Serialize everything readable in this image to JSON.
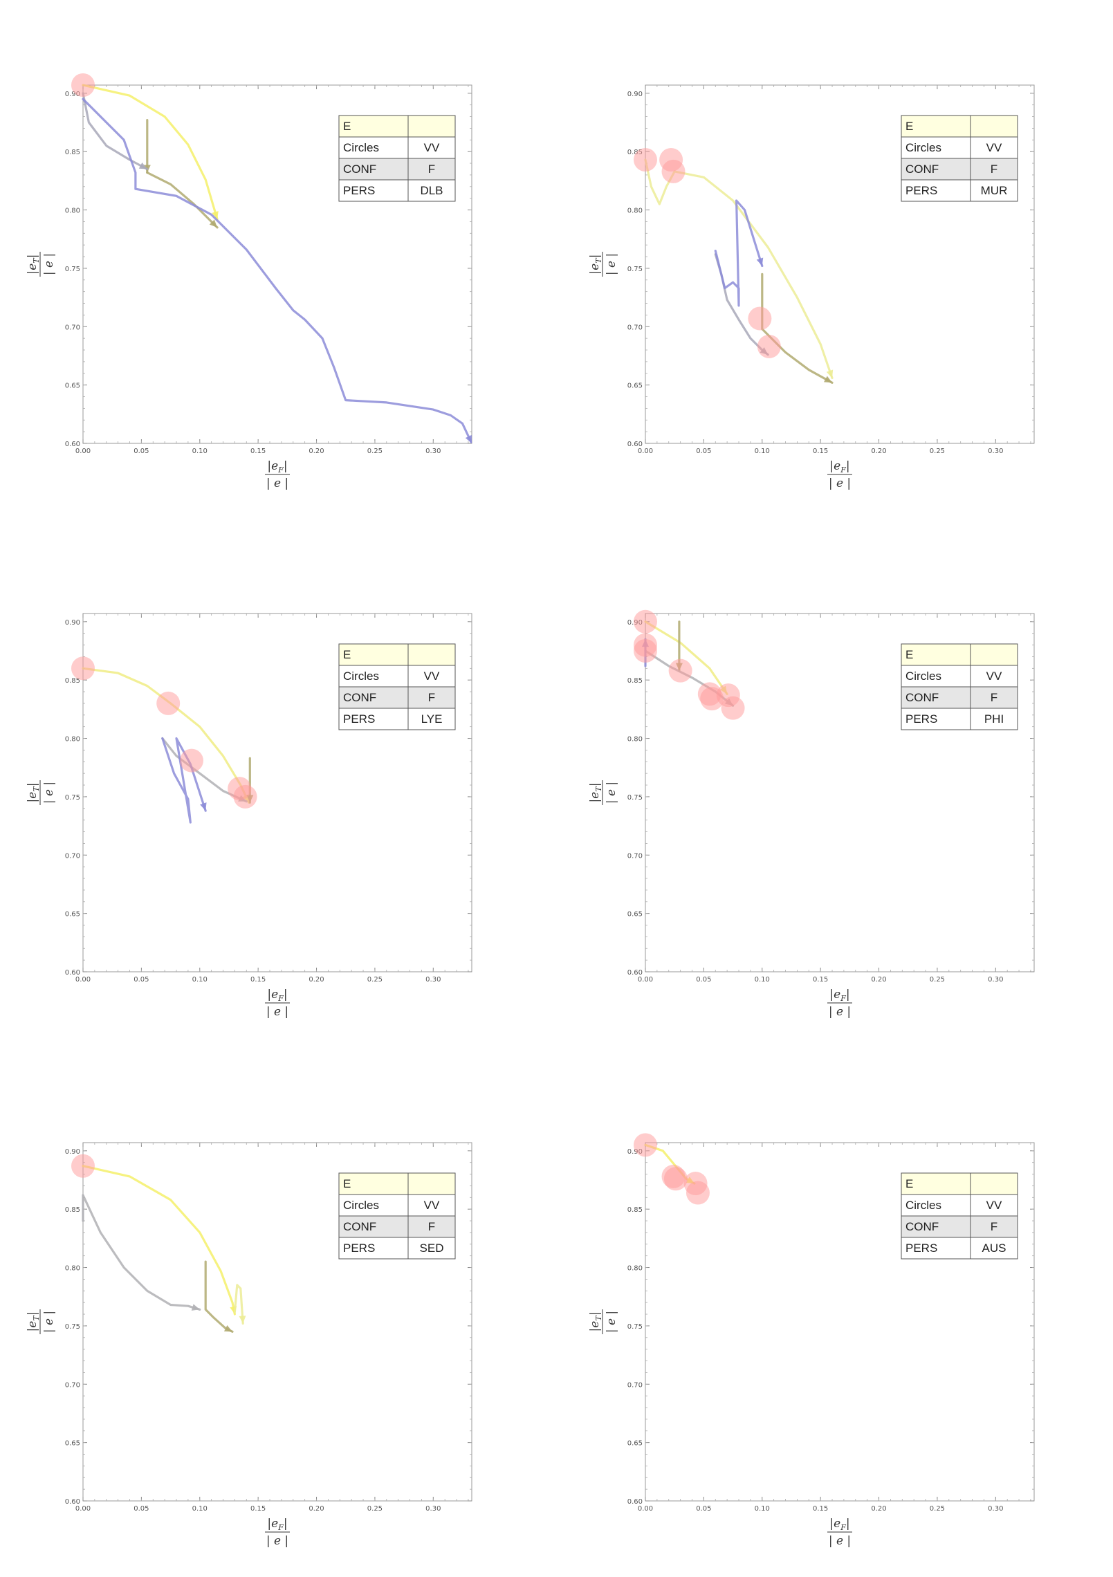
{
  "chart_data": [
    {
      "type": "line",
      "xlabel": "|eF| / |e|",
      "ylabel": "|eT| / |e|",
      "xlim": [
        0,
        0.333
      ],
      "ylim": [
        0.6,
        0.907
      ],
      "xticks": [
        "0.00",
        "0.05",
        "0.10",
        "0.15",
        "0.20",
        "0.25",
        "0.30"
      ],
      "yticks": [
        "0.60",
        "0.65",
        "0.70",
        "0.75",
        "0.80",
        "0.85",
        "0.90"
      ],
      "legend": {
        "placement": "top-right",
        "header": [
          "E",
          ""
        ],
        "rows": [
          [
            "Circles",
            "VV"
          ],
          [
            "CONF",
            "F"
          ],
          [
            "PERS",
            "DLB"
          ]
        ]
      },
      "series": [
        {
          "color": "#f5f06a",
          "points": [
            [
              0.0,
              0.907
            ],
            [
              0.04,
              0.898
            ],
            [
              0.07,
              0.88
            ],
            [
              0.09,
              0.856
            ],
            [
              0.105,
              0.826
            ],
            [
              0.115,
              0.792
            ]
          ]
        },
        {
          "color": "#b0aa70",
          "points": [
            [
              0.055,
              0.877
            ],
            [
              0.055,
              0.832
            ]
          ]
        },
        {
          "color": "#b0aa70",
          "points": [
            [
              0.055,
              0.832
            ],
            [
              0.075,
              0.822
            ],
            [
              0.095,
              0.805
            ],
            [
              0.115,
              0.785
            ]
          ]
        },
        {
          "color": "#a8a8b8",
          "points": [
            [
              0.0,
              0.9
            ],
            [
              0.005,
              0.875
            ],
            [
              0.02,
              0.855
            ],
            [
              0.04,
              0.843
            ],
            [
              0.055,
              0.835
            ]
          ]
        },
        {
          "color": "#8c8cd8",
          "points": [
            [
              0.0,
              0.895
            ],
            [
              0.02,
              0.875
            ],
            [
              0.035,
              0.86
            ],
            [
              0.045,
              0.832
            ],
            [
              0.045,
              0.818
            ],
            [
              0.08,
              0.812
            ],
            [
              0.11,
              0.796
            ],
            [
              0.14,
              0.766
            ],
            [
              0.165,
              0.733
            ],
            [
              0.18,
              0.714
            ],
            [
              0.19,
              0.706
            ],
            [
              0.205,
              0.69
            ],
            [
              0.215,
              0.665
            ],
            [
              0.225,
              0.637
            ],
            [
              0.26,
              0.635
            ],
            [
              0.3,
              0.629
            ],
            [
              0.315,
              0.624
            ],
            [
              0.325,
              0.617
            ],
            [
              0.333,
              0.6
            ]
          ]
        }
      ],
      "markers": [
        {
          "x": 0.0,
          "y": 0.907
        }
      ]
    },
    {
      "type": "line",
      "xlabel": "|eF| / |e|",
      "ylabel": "|eT| / |e|",
      "xlim": [
        0,
        0.333
      ],
      "ylim": [
        0.6,
        0.907
      ],
      "xticks": [
        "0.00",
        "0.05",
        "0.10",
        "0.15",
        "0.20",
        "0.25",
        "0.30"
      ],
      "yticks": [
        "0.60",
        "0.65",
        "0.70",
        "0.75",
        "0.80",
        "0.85",
        "0.90"
      ],
      "legend": {
        "placement": "top-right",
        "header": [
          "E",
          ""
        ],
        "rows": [
          [
            "Circles",
            "VV"
          ],
          [
            "CONF",
            "F"
          ],
          [
            "PERS",
            "MUR"
          ]
        ]
      },
      "series": [
        {
          "color": "#ecec96",
          "points": [
            [
              0.0,
              0.843
            ],
            [
              0.005,
              0.82
            ],
            [
              0.012,
              0.805
            ],
            [
              0.018,
              0.82
            ],
            [
              0.025,
              0.833
            ],
            [
              0.05,
              0.828
            ],
            [
              0.075,
              0.808
            ],
            [
              0.105,
              0.768
            ],
            [
              0.13,
              0.725
            ],
            [
              0.15,
              0.685
            ],
            [
              0.16,
              0.656
            ]
          ]
        },
        {
          "color": "#b0aa70",
          "points": [
            [
              0.1,
              0.745
            ],
            [
              0.1,
              0.698
            ],
            [
              0.12,
              0.678
            ],
            [
              0.14,
              0.663
            ],
            [
              0.16,
              0.652
            ]
          ]
        },
        {
          "color": "#a8a8b8",
          "points": [
            [
              0.06,
              0.762
            ],
            [
              0.065,
              0.745
            ],
            [
              0.07,
              0.723
            ],
            [
              0.08,
              0.706
            ],
            [
              0.09,
              0.69
            ],
            [
              0.1,
              0.68
            ],
            [
              0.105,
              0.676
            ]
          ]
        },
        {
          "color": "#8c8cd8",
          "points": [
            [
              0.06,
              0.765
            ],
            [
              0.068,
              0.733
            ],
            [
              0.075,
              0.738
            ],
            [
              0.08,
              0.733
            ],
            [
              0.08,
              0.718
            ],
            [
              0.078,
              0.808
            ],
            [
              0.085,
              0.8
            ],
            [
              0.1,
              0.752
            ]
          ]
        }
      ],
      "markers": [
        {
          "x": 0.0,
          "y": 0.843
        },
        {
          "x": 0.022,
          "y": 0.843
        },
        {
          "x": 0.024,
          "y": 0.833
        },
        {
          "x": 0.098,
          "y": 0.707
        },
        {
          "x": 0.106,
          "y": 0.683
        }
      ]
    },
    {
      "type": "line",
      "xlabel": "|eF| / |e|",
      "ylabel": "|eT| / |e|",
      "xlim": [
        0,
        0.333
      ],
      "ylim": [
        0.6,
        0.907
      ],
      "xticks": [
        "0.00",
        "0.05",
        "0.10",
        "0.15",
        "0.20",
        "0.25",
        "0.30"
      ],
      "yticks": [
        "0.60",
        "0.65",
        "0.70",
        "0.75",
        "0.80",
        "0.85",
        "0.90"
      ],
      "legend": {
        "placement": "top-right",
        "header": [
          "E",
          ""
        ],
        "rows": [
          [
            "Circles",
            "VV"
          ],
          [
            "CONF",
            "F"
          ],
          [
            "PERS",
            "LYE"
          ]
        ]
      },
      "series": [
        {
          "color": "#f0ec84",
          "points": [
            [
              0.0,
              0.86
            ],
            [
              0.03,
              0.856
            ],
            [
              0.055,
              0.845
            ],
            [
              0.075,
              0.83
            ],
            [
              0.1,
              0.81
            ],
            [
              0.12,
              0.785
            ],
            [
              0.135,
              0.76
            ],
            [
              0.142,
              0.745
            ]
          ]
        },
        {
          "color": "#b0aa70",
          "points": [
            [
              0.143,
              0.783
            ],
            [
              0.143,
              0.745
            ]
          ]
        },
        {
          "color": "#b0b0b4",
          "points": [
            [
              0.068,
              0.8
            ],
            [
              0.08,
              0.785
            ],
            [
              0.1,
              0.77
            ],
            [
              0.12,
              0.755
            ],
            [
              0.14,
              0.746
            ]
          ]
        },
        {
          "color": "#8c8cd8",
          "points": [
            [
              0.068,
              0.8
            ],
            [
              0.078,
              0.77
            ],
            [
              0.09,
              0.748
            ],
            [
              0.092,
              0.728
            ],
            [
              0.08,
              0.8
            ],
            [
              0.092,
              0.778
            ],
            [
              0.105,
              0.738
            ]
          ]
        }
      ],
      "markers": [
        {
          "x": 0.0,
          "y": 0.86
        },
        {
          "x": 0.073,
          "y": 0.83
        },
        {
          "x": 0.093,
          "y": 0.781
        },
        {
          "x": 0.134,
          "y": 0.757
        },
        {
          "x": 0.139,
          "y": 0.75
        }
      ]
    },
    {
      "type": "line",
      "xlabel": "|eF| / |e|",
      "ylabel": "|eT| / |e|",
      "xlim": [
        0,
        0.333
      ],
      "ylim": [
        0.6,
        0.907
      ],
      "xticks": [
        "0.00",
        "0.05",
        "0.10",
        "0.15",
        "0.20",
        "0.25",
        "0.30"
      ],
      "yticks": [
        "0.60",
        "0.65",
        "0.70",
        "0.75",
        "0.80",
        "0.85",
        "0.90"
      ],
      "legend": {
        "placement": "top-right",
        "header": [
          "E",
          ""
        ],
        "rows": [
          [
            "Circles",
            "VV"
          ],
          [
            "CONF",
            "F"
          ],
          [
            "PERS",
            "PHI"
          ]
        ]
      },
      "series": [
        {
          "color": "#f0ec84",
          "points": [
            [
              0.0,
              0.9
            ],
            [
              0.03,
              0.882
            ],
            [
              0.055,
              0.86
            ],
            [
              0.07,
              0.838
            ]
          ]
        },
        {
          "color": "#b0aa70",
          "points": [
            [
              0.029,
              0.9
            ],
            [
              0.029,
              0.858
            ]
          ]
        },
        {
          "color": "#b0b0b4",
          "points": [
            [
              0.0,
              0.875
            ],
            [
              0.02,
              0.862
            ],
            [
              0.04,
              0.852
            ],
            [
              0.06,
              0.84
            ],
            [
              0.075,
              0.828
            ]
          ]
        },
        {
          "color": "#8c8cd8",
          "points": [
            [
              0.0,
              0.862
            ],
            [
              0.0,
              0.885
            ]
          ]
        }
      ],
      "markers": [
        {
          "x": 0.0,
          "y": 0.9
        },
        {
          "x": 0.0,
          "y": 0.88
        },
        {
          "x": 0.0,
          "y": 0.875
        },
        {
          "x": 0.03,
          "y": 0.858
        },
        {
          "x": 0.055,
          "y": 0.838
        },
        {
          "x": 0.057,
          "y": 0.834
        },
        {
          "x": 0.071,
          "y": 0.837
        },
        {
          "x": 0.075,
          "y": 0.826
        }
      ]
    },
    {
      "type": "line",
      "xlabel": "|eF| / |e|",
      "ylabel": "|eT| / |e|",
      "xlim": [
        0,
        0.333
      ],
      "ylim": [
        0.6,
        0.907
      ],
      "xticks": [
        "0.00",
        "0.05",
        "0.10",
        "0.15",
        "0.20",
        "0.25",
        "0.30"
      ],
      "yticks": [
        "0.60",
        "0.65",
        "0.70",
        "0.75",
        "0.80",
        "0.85",
        "0.90"
      ],
      "legend": {
        "placement": "top-right",
        "header": [
          "E",
          ""
        ],
        "rows": [
          [
            "Circles",
            "VV"
          ],
          [
            "CONF",
            "F"
          ],
          [
            "PERS",
            "SED"
          ]
        ]
      },
      "series": [
        {
          "color": "#f5f06a",
          "points": [
            [
              0.0,
              0.887
            ],
            [
              0.04,
              0.878
            ],
            [
              0.075,
              0.858
            ],
            [
              0.1,
              0.83
            ],
            [
              0.118,
              0.797
            ],
            [
              0.128,
              0.77
            ],
            [
              0.13,
              0.76
            ]
          ]
        },
        {
          "color": "#ecec96",
          "points": [
            [
              0.13,
              0.762
            ],
            [
              0.132,
              0.785
            ],
            [
              0.135,
              0.782
            ],
            [
              0.137,
              0.752
            ]
          ]
        },
        {
          "color": "#b0aa70",
          "points": [
            [
              0.105,
              0.805
            ],
            [
              0.105,
              0.764
            ],
            [
              0.112,
              0.757
            ],
            [
              0.122,
              0.748
            ],
            [
              0.128,
              0.745
            ]
          ]
        },
        {
          "color": "#b0b0b4",
          "points": [
            [
              0.0,
              0.84
            ],
            [
              0.0,
              0.862
            ],
            [
              0.015,
              0.83
            ],
            [
              0.035,
              0.8
            ],
            [
              0.055,
              0.78
            ],
            [
              0.075,
              0.768
            ],
            [
              0.09,
              0.767
            ],
            [
              0.1,
              0.764
            ]
          ]
        }
      ],
      "markers": [
        {
          "x": 0.0,
          "y": 0.887
        }
      ]
    },
    {
      "type": "line",
      "xlabel": "|eF| / |e|",
      "ylabel": "|eT| / |e|",
      "xlim": [
        0,
        0.333
      ],
      "ylim": [
        0.6,
        0.907
      ],
      "xticks": [
        "0.00",
        "0.05",
        "0.10",
        "0.15",
        "0.20",
        "0.25",
        "0.30"
      ],
      "yticks": [
        "0.60",
        "0.65",
        "0.70",
        "0.75",
        "0.80",
        "0.85",
        "0.90"
      ],
      "legend": {
        "placement": "top-right",
        "header": [
          "E",
          ""
        ],
        "rows": [
          [
            "Circles",
            "VV"
          ],
          [
            "CONF",
            "F"
          ],
          [
            "PERS",
            "AUS"
          ]
        ]
      },
      "series": [
        {
          "color": "#f5f06a",
          "points": [
            [
              0.0,
              0.905
            ],
            [
              0.015,
              0.9
            ],
            [
              0.025,
              0.888
            ],
            [
              0.035,
              0.876
            ],
            [
              0.042,
              0.872
            ]
          ]
        }
      ],
      "markers": [
        {
          "x": 0.0,
          "y": 0.905
        },
        {
          "x": 0.024,
          "y": 0.878
        },
        {
          "x": 0.026,
          "y": 0.876
        },
        {
          "x": 0.043,
          "y": 0.872
        },
        {
          "x": 0.045,
          "y": 0.864
        }
      ]
    }
  ]
}
